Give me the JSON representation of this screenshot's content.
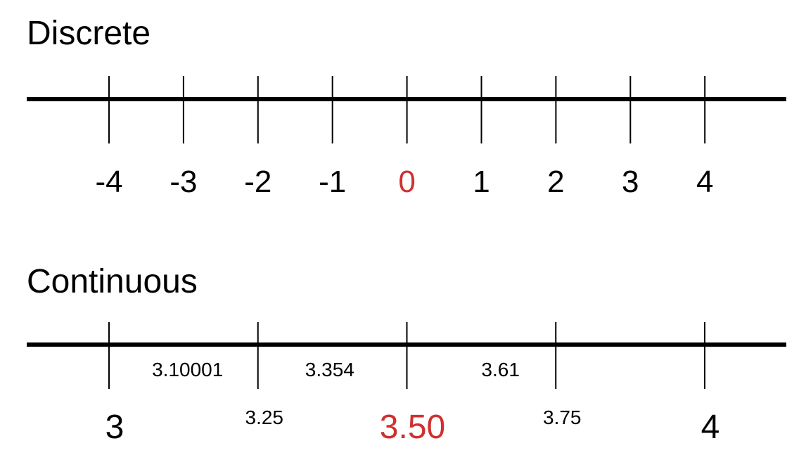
{
  "discrete": {
    "title": "Discrete",
    "ticks": [
      {
        "value": -4,
        "label": "-4"
      },
      {
        "value": -3,
        "label": "-3"
      },
      {
        "value": -2,
        "label": "-2"
      },
      {
        "value": -1,
        "label": "-1"
      },
      {
        "value": 0,
        "label": "0",
        "highlight": true
      },
      {
        "value": 1,
        "label": "1"
      },
      {
        "value": 2,
        "label": "2"
      },
      {
        "value": 3,
        "label": "3"
      },
      {
        "value": 4,
        "label": "4"
      }
    ]
  },
  "continuous": {
    "title": "Continuous",
    "ticks": [
      {
        "value": 3,
        "label": "3",
        "size": "large"
      },
      {
        "value": 3.25,
        "label": "3.25",
        "size": "small"
      },
      {
        "value": 3.5,
        "label": "3.50",
        "size": "large",
        "highlight": true
      },
      {
        "value": 3.75,
        "label": "3.75",
        "size": "small"
      },
      {
        "value": 4,
        "label": "4",
        "size": "large"
      }
    ],
    "between_values": [
      {
        "value": 3.10001,
        "label": "3.10001"
      },
      {
        "value": 3.354,
        "label": "3.354"
      },
      {
        "value": 3.61,
        "label": "3.61"
      }
    ]
  },
  "colors": {
    "line": "#000000",
    "text": "#000000",
    "highlight": "#d03030"
  }
}
